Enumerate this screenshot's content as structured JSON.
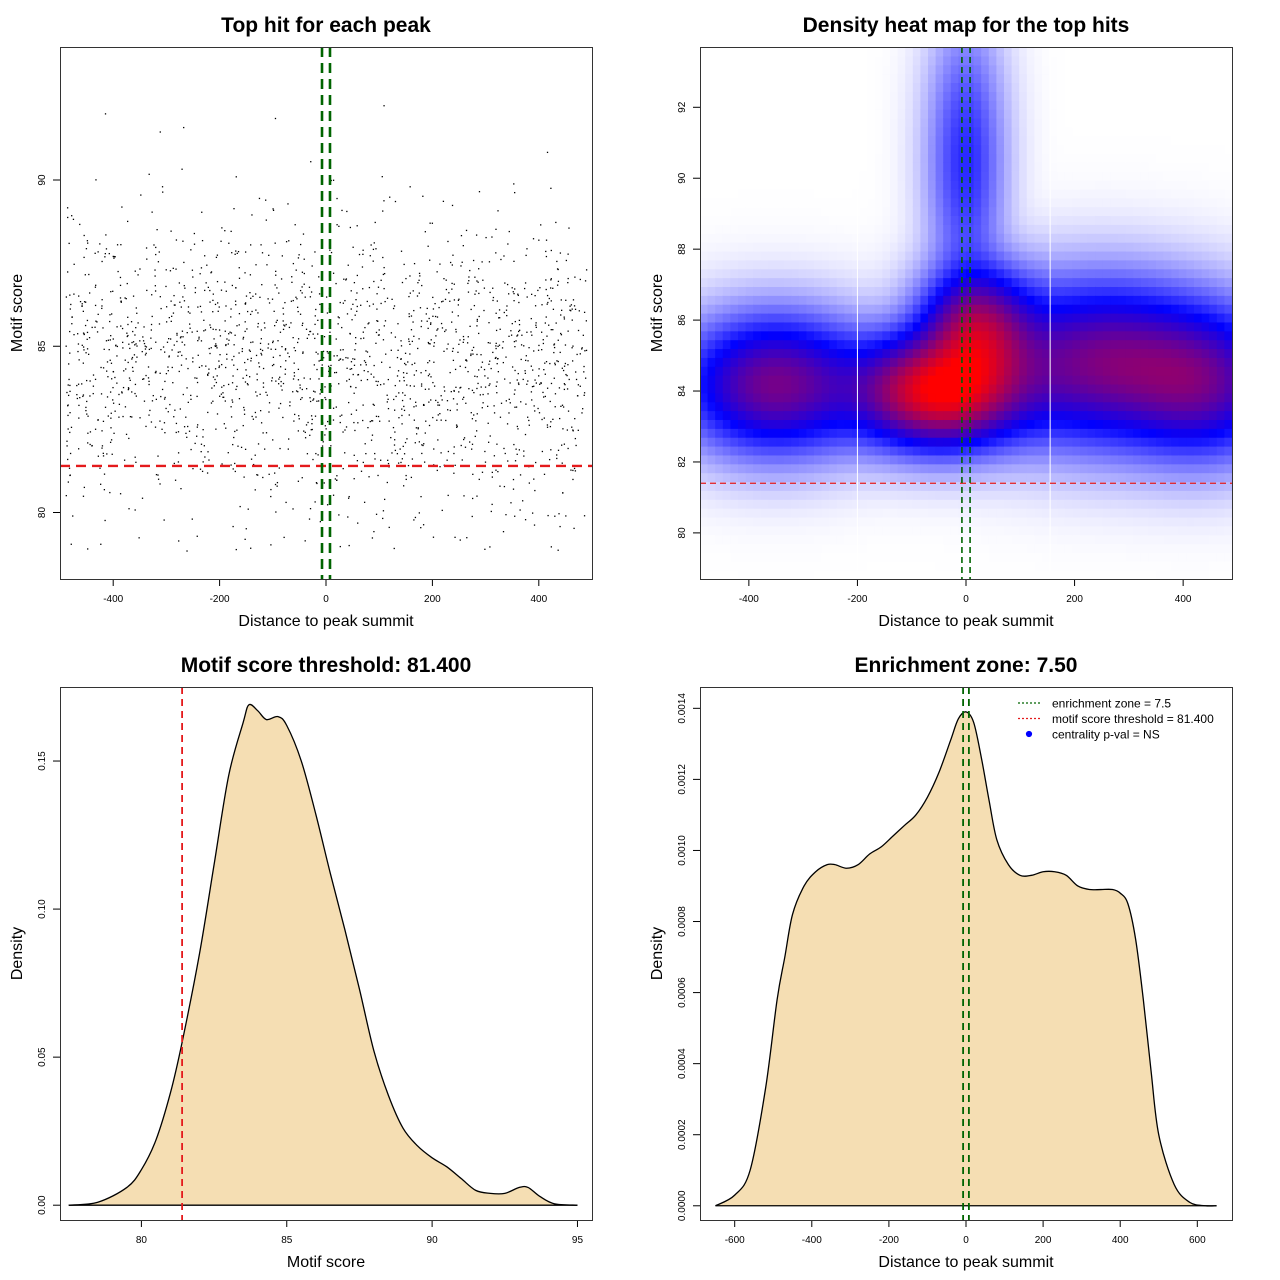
{
  "colors": {
    "threshold_line": "#e41a1c",
    "zone_line": "#006400",
    "density_fill": "#f5deb3",
    "heat_low": "#ffffff",
    "heat_mid": "#0000ff",
    "heat_high": "#ff0000",
    "legend_point": "#0000ff"
  },
  "chart_data": [
    {
      "panel": "top-left",
      "type": "scatter",
      "title": "Top hit for each peak",
      "xlabel": "Distance to peak summit",
      "ylabel": "Motif score",
      "xlim": [
        -500,
        500
      ],
      "ylim": [
        78,
        94
      ],
      "xticks": [
        -400,
        -200,
        0,
        200,
        400
      ],
      "yticks": [
        80,
        85,
        90
      ],
      "n_points": 1950,
      "x_range": [
        -490,
        490
      ],
      "score_center": 84.5,
      "score_spread": 2.2,
      "threshold": 81.4,
      "zone_lines": [
        -7.5,
        7.5
      ]
    },
    {
      "panel": "top-right",
      "type": "heatmap",
      "title": "Density heat map for the top hits",
      "xlabel": "Distance to peak summit",
      "ylabel": "Motif score",
      "xlim": [
        -490,
        490
      ],
      "ylim": [
        78.7,
        93.7
      ],
      "xticks": [
        -400,
        -200,
        0,
        200,
        400
      ],
      "yticks": [
        80,
        82,
        84,
        86,
        88,
        90,
        92
      ],
      "threshold": 81.4,
      "zone_lines": [
        -7.5,
        7.5
      ],
      "white_lines": [
        -200,
        155
      ],
      "hotspots": [
        {
          "x": -50,
          "y": 84.0,
          "sx": 90,
          "sy": 0.9,
          "w": 1.0
        },
        {
          "x": 20,
          "y": 85.7,
          "sx": 60,
          "sy": 1.0,
          "w": 0.65
        },
        {
          "x": -350,
          "y": 84.2,
          "sx": 100,
          "sy": 1.1,
          "w": 0.55
        },
        {
          "x": 250,
          "y": 84.8,
          "sx": 130,
          "sy": 1.3,
          "w": 0.55
        },
        {
          "x": 440,
          "y": 84.2,
          "sx": 90,
          "sy": 1.2,
          "w": 0.4
        },
        {
          "x": 0,
          "y": 90.5,
          "sx": 40,
          "sy": 2.2,
          "w": 0.18
        }
      ]
    },
    {
      "panel": "bottom-left",
      "type": "area",
      "title": "Motif score threshold: 81.400",
      "xlabel": "Motif score",
      "ylabel": "Density",
      "xlim": [
        77.2,
        95.5
      ],
      "ylim": [
        -0.005,
        0.175
      ],
      "xticks": [
        80,
        85,
        90,
        95
      ],
      "yticks": [
        0.0,
        0.05,
        0.1,
        0.15
      ],
      "ytick_labels": [
        "0.00",
        "0.05",
        "0.10",
        "0.15"
      ],
      "threshold": 81.4,
      "x": [
        77.5,
        78.5,
        79.5,
        80.0,
        80.5,
        81.0,
        81.4,
        82.0,
        82.5,
        83.0,
        83.5,
        83.7,
        84.0,
        84.3,
        84.7,
        85.0,
        85.5,
        86.0,
        86.5,
        87.0,
        87.5,
        88.0,
        88.5,
        89.0,
        89.5,
        90.0,
        90.5,
        91.0,
        91.5,
        92.0,
        92.5,
        93.0,
        93.3,
        93.7,
        94.2,
        95.0
      ],
      "y": [
        0.0,
        0.001,
        0.006,
        0.012,
        0.022,
        0.038,
        0.055,
        0.085,
        0.115,
        0.145,
        0.163,
        0.169,
        0.167,
        0.164,
        0.165,
        0.162,
        0.15,
        0.132,
        0.112,
        0.093,
        0.073,
        0.052,
        0.037,
        0.026,
        0.02,
        0.016,
        0.013,
        0.009,
        0.005,
        0.004,
        0.004,
        0.006,
        0.006,
        0.003,
        0.0005,
        0.0
      ]
    },
    {
      "panel": "bottom-right",
      "type": "area",
      "title": "Enrichment zone: 7.50",
      "xlabel": "Distance to peak summit",
      "ylabel": "Density",
      "xlim": [
        -690,
        690
      ],
      "ylim": [
        -4e-05,
        0.00146
      ],
      "xticks": [
        -600,
        -400,
        -200,
        0,
        200,
        400,
        600
      ],
      "yticks": [
        0.0,
        0.0002,
        0.0004,
        0.0006,
        0.0008,
        0.001,
        0.0012,
        0.0014
      ],
      "ytick_labels": [
        "0.0000",
        "0.0002",
        "0.0004",
        "0.0006",
        "0.0008",
        "0.0010",
        "0.0012",
        "0.0014"
      ],
      "zone_lines": [
        -7.5,
        7.5
      ],
      "x": [
        -650,
        -600,
        -560,
        -520,
        -490,
        -470,
        -450,
        -420,
        -390,
        -360,
        -340,
        -310,
        -280,
        -250,
        -220,
        -190,
        -160,
        -130,
        -100,
        -70,
        -40,
        -20,
        0,
        20,
        40,
        60,
        80,
        110,
        140,
        170,
        200,
        230,
        260,
        290,
        320,
        350,
        380,
        400,
        420,
        440,
        460,
        480,
        500,
        540,
        580,
        620,
        650
      ],
      "y": [
        0.0,
        3e-05,
        0.0001,
        0.00033,
        0.00058,
        0.0007,
        0.00082,
        0.0009,
        0.00094,
        0.00096,
        0.00096,
        0.00095,
        0.00096,
        0.00099,
        0.00101,
        0.00104,
        0.00107,
        0.0011,
        0.00115,
        0.00122,
        0.00131,
        0.00137,
        0.00139,
        0.00136,
        0.00126,
        0.00114,
        0.00103,
        0.00096,
        0.00093,
        0.00093,
        0.00094,
        0.00094,
        0.00093,
        0.0009,
        0.00089,
        0.00089,
        0.00089,
        0.00088,
        0.00085,
        0.00075,
        0.00058,
        0.00038,
        0.0002,
        6e-05,
        1e-05,
        0.0,
        0.0
      ],
      "legend": {
        "placement": "top-right",
        "entries": [
          {
            "label": "enrichment zone = 7.5",
            "style": "dotted-line",
            "color": "#006400"
          },
          {
            "label": "motif score threshold = 81.400",
            "style": "dotted-line",
            "color": "#e41a1c"
          },
          {
            "label": "centrality p-val = NS",
            "style": "point",
            "color": "#0000ff"
          }
        ]
      }
    }
  ]
}
